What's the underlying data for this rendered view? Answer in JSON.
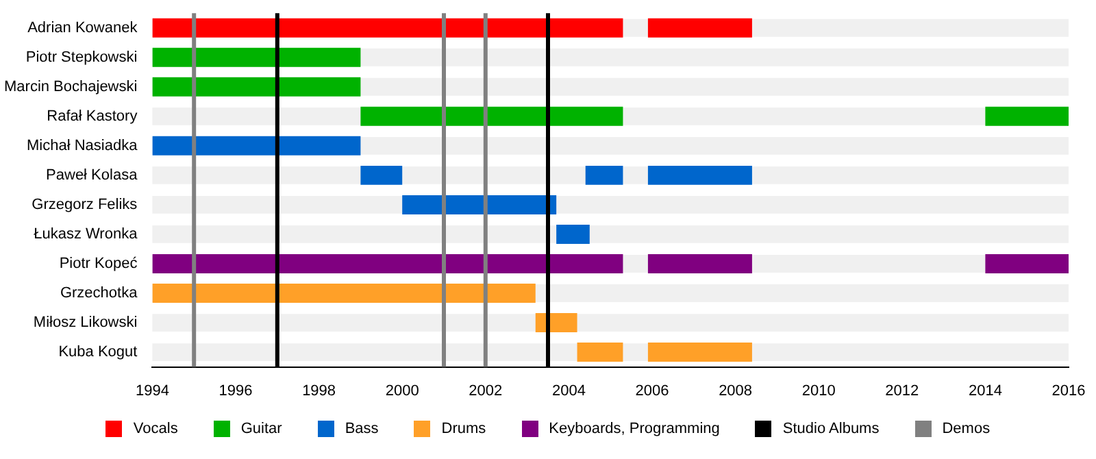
{
  "chart_data": {
    "type": "bar",
    "orientation": "horizontal",
    "categories": [
      "Adrian Kowanek",
      "Piotr Stepkowski",
      "Marcin Bochajewski",
      "Rafał Kastory",
      "Michał Nasiadka",
      "Paweł Kolasa",
      "Grzegorz Feliks",
      "Łukasz Wronka",
      "Piotr Kopeć",
      "Grzechotka",
      "Miłosz Likowski",
      "Kuba Kogut"
    ],
    "series": [
      {
        "name": "Vocals",
        "color": "#ff0000",
        "values": [
          11.3,
          null,
          null,
          null,
          null,
          null,
          null,
          null,
          null,
          null,
          null,
          null
        ],
        "base": [
          1994,
          null,
          null,
          null,
          null,
          null,
          null,
          null,
          null,
          null,
          null,
          null
        ]
      },
      {
        "color": "#ff0000",
        "values": [
          2.5,
          null,
          null,
          null,
          null,
          null,
          null,
          null,
          null,
          null,
          null,
          null
        ],
        "base": [
          2005.9,
          null,
          null,
          null,
          null,
          null,
          null,
          null,
          null,
          null,
          null,
          null
        ]
      },
      {
        "name": "Guitar",
        "color": "#00b200",
        "values": [
          null,
          5,
          5,
          6.3,
          null,
          null,
          null,
          null,
          null,
          null,
          null,
          null
        ],
        "base": [
          null,
          1994,
          1994,
          1999,
          null,
          null,
          null,
          null,
          null,
          null,
          null,
          null
        ]
      },
      {
        "color": "#00b200",
        "values": [
          null,
          null,
          null,
          2,
          null,
          null,
          null,
          null,
          null,
          null,
          null,
          null
        ],
        "base": [
          null,
          null,
          null,
          2014,
          null,
          null,
          null,
          null,
          null,
          null,
          null,
          null
        ]
      },
      {
        "name": "Bass",
        "color": "#0066cc",
        "values": [
          null,
          null,
          null,
          null,
          5,
          1,
          3.7,
          0.8,
          null,
          null,
          null,
          null
        ],
        "base": [
          null,
          null,
          null,
          null,
          1994,
          1999,
          2000,
          2003.7,
          null,
          null,
          null,
          null
        ]
      },
      {
        "color": "#0066cc",
        "values": [
          null,
          null,
          null,
          null,
          null,
          0.9,
          null,
          null,
          null,
          null,
          null,
          null
        ],
        "base": [
          null,
          null,
          null,
          null,
          null,
          2004.4,
          null,
          null,
          null,
          null,
          null,
          null
        ]
      },
      {
        "color": "#0066cc",
        "values": [
          null,
          null,
          null,
          null,
          null,
          2.5,
          null,
          null,
          null,
          null,
          null,
          null
        ],
        "base": [
          null,
          null,
          null,
          null,
          null,
          2005.9,
          null,
          null,
          null,
          null,
          null,
          null
        ]
      },
      {
        "name": "Drums",
        "color": "#ffa028",
        "values": [
          null,
          null,
          null,
          null,
          null,
          null,
          null,
          null,
          null,
          9.2,
          1,
          1.1
        ],
        "base": [
          null,
          null,
          null,
          null,
          null,
          null,
          null,
          null,
          null,
          1994,
          2003.2,
          2004.2
        ]
      },
      {
        "color": "#ffa028",
        "values": [
          null,
          null,
          null,
          null,
          null,
          null,
          null,
          null,
          null,
          null,
          null,
          2.5
        ],
        "base": [
          null,
          null,
          null,
          null,
          null,
          null,
          null,
          null,
          null,
          null,
          null,
          2005.9
        ]
      },
      {
        "name": "Keyboards, Programming",
        "color": "#800080",
        "values": [
          null,
          null,
          null,
          null,
          null,
          null,
          null,
          null,
          11.3,
          null,
          null,
          null
        ],
        "base": [
          null,
          null,
          null,
          null,
          null,
          null,
          null,
          null,
          1994,
          null,
          null,
          null
        ]
      },
      {
        "color": "#800080",
        "values": [
          null,
          null,
          null,
          null,
          null,
          null,
          null,
          null,
          2.5,
          null,
          null,
          null
        ],
        "base": [
          null,
          null,
          null,
          null,
          null,
          null,
          null,
          null,
          2005.9,
          null,
          null,
          null
        ]
      },
      {
        "color": "#800080",
        "values": [
          null,
          null,
          null,
          null,
          null,
          null,
          null,
          null,
          2,
          null,
          null,
          null
        ],
        "base": [
          null,
          null,
          null,
          null,
          null,
          null,
          null,
          null,
          2014,
          null,
          null,
          null
        ]
      }
    ],
    "ref_lines": [
      {
        "axis": "x",
        "value": 1997,
        "label": "Studio Albums",
        "color": "#000000"
      },
      {
        "axis": "x",
        "value": 2003.5,
        "color": "#000000"
      },
      {
        "axis": "x",
        "value": 1995,
        "label": "Demos",
        "color": "#808080"
      },
      {
        "axis": "x",
        "value": 2001,
        "color": "#808080"
      },
      {
        "axis": "x",
        "value": 2002,
        "color": "#808080"
      }
    ],
    "xlim": [
      1994,
      2016
    ],
    "xticks": [
      1994,
      1996,
      1998,
      2000,
      2002,
      2004,
      2006,
      2008,
      2010,
      2012,
      2014,
      2016
    ],
    "grid": false,
    "legend": "bottom"
  }
}
